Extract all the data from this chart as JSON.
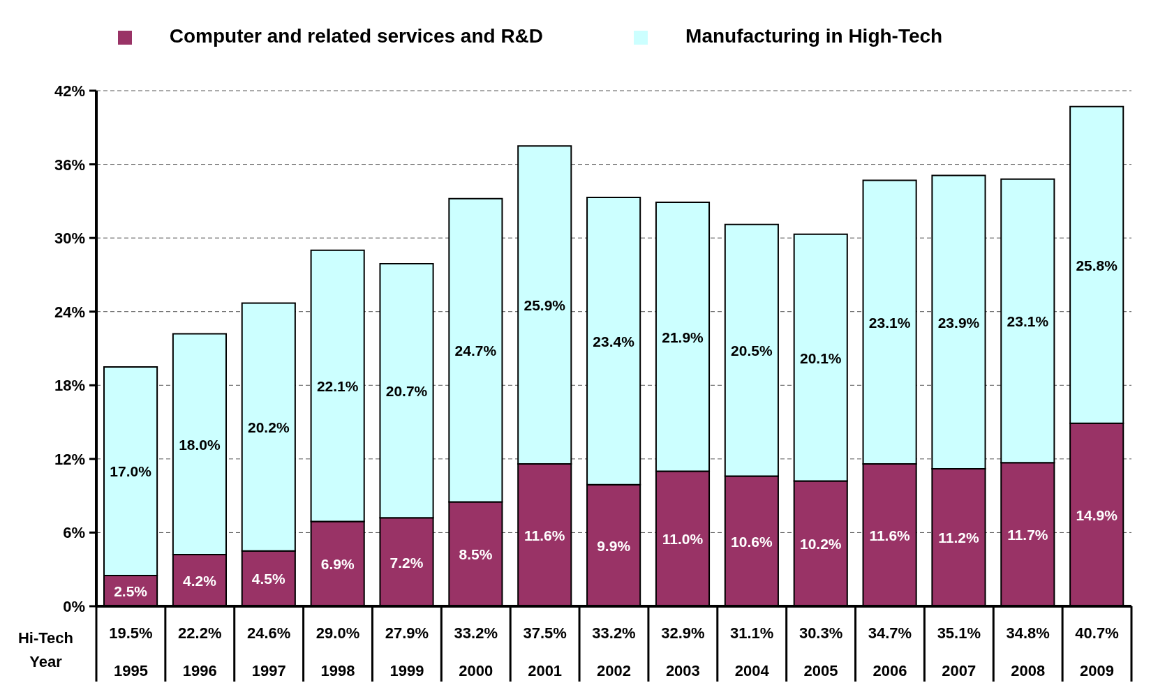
{
  "chart_data": {
    "type": "bar",
    "stacked": true,
    "xlabel": "Year",
    "categories": [
      "1995",
      "1996",
      "1997",
      "1998",
      "1999",
      "2000",
      "2001",
      "2002",
      "2003",
      "2004",
      "2005",
      "2006",
      "2007",
      "2008",
      "2009"
    ],
    "series": [
      {
        "name": "Computer and related services and R&D",
        "color": "#993366",
        "values": [
          2.5,
          4.2,
          4.5,
          6.9,
          7.2,
          8.5,
          11.6,
          9.9,
          11.0,
          10.6,
          10.2,
          11.6,
          11.2,
          11.7,
          14.9
        ],
        "value_labels": [
          "2.5%",
          "4.2%",
          "4.5%",
          "6.9%",
          "7.2%",
          "8.5%",
          "11.6%",
          "9.9%",
          "11.0%",
          "10.6%",
          "10.2%",
          "11.6%",
          "11.2%",
          "11.7%",
          "14.9%"
        ]
      },
      {
        "name": "Manufacturing in High-Tech",
        "color": "#ccffff",
        "values": [
          17.0,
          18.0,
          20.2,
          22.1,
          20.7,
          24.7,
          25.9,
          23.4,
          21.9,
          20.5,
          20.1,
          23.1,
          23.9,
          23.1,
          25.8
        ],
        "value_labels": [
          "17.0%",
          "18.0%",
          "20.2%",
          "22.1%",
          "20.7%",
          "24.7%",
          "25.9%",
          "23.4%",
          "21.9%",
          "20.5%",
          "20.1%",
          "23.1%",
          "23.9%",
          "23.1%",
          "25.8%"
        ]
      }
    ],
    "totals": [
      "19.5%",
      "22.2%",
      "24.6%",
      "29.0%",
      "27.9%",
      "33.2%",
      "37.5%",
      "33.2%",
      "32.9%",
      "31.1%",
      "30.3%",
      "34.7%",
      "35.1%",
      "34.8%",
      "40.7%"
    ],
    "annotations": [
      "Hi-Tech"
    ],
    "ylim": [
      0,
      42
    ],
    "yticks": [
      {
        "value": 0,
        "label": "0%"
      },
      {
        "value": 6,
        "label": "6%"
      },
      {
        "value": 12,
        "label": "12%"
      },
      {
        "value": 18,
        "label": "18%"
      },
      {
        "value": 24,
        "label": "24%"
      },
      {
        "value": 30,
        "label": "30%"
      },
      {
        "value": 36,
        "label": "36%"
      },
      {
        "value": 42,
        "label": "42%"
      }
    ],
    "grid": "y",
    "legend": "top"
  }
}
